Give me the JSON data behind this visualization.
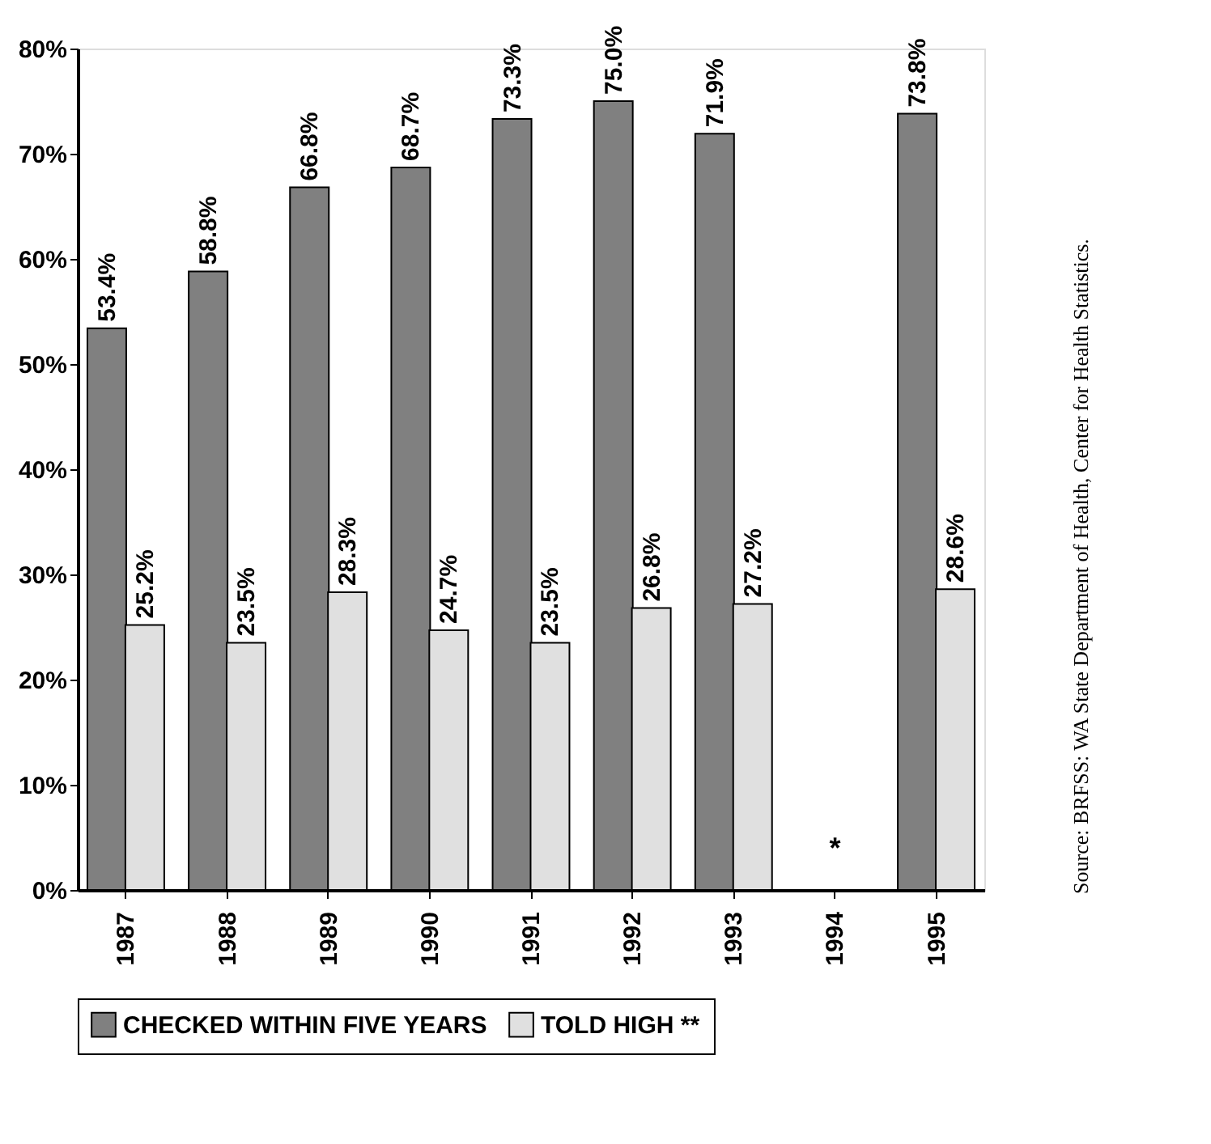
{
  "chart_data": {
    "type": "bar",
    "categories": [
      "1987",
      "1988",
      "1989",
      "1990",
      "1991",
      "1992",
      "1993",
      "1994",
      "1995"
    ],
    "series": [
      {
        "name": "CHECKED WITHIN FIVE YEARS",
        "color": "#808080",
        "values": [
          53.4,
          58.8,
          66.8,
          68.7,
          73.3,
          75.0,
          71.9,
          null,
          73.8
        ],
        "value_labels": [
          "53.4%",
          "58.8%",
          "66.8%",
          "68.7%",
          "73.3%",
          "75.0%",
          "71.9%",
          null,
          "73.8%"
        ]
      },
      {
        "name": "TOLD HIGH **",
        "color": "#e0e0e0",
        "values": [
          25.2,
          23.5,
          28.3,
          24.7,
          23.5,
          26.8,
          27.2,
          null,
          28.6
        ],
        "value_labels": [
          "25.2%",
          "23.5%",
          "28.3%",
          "24.7%",
          "23.5%",
          "26.8%",
          "27.2%",
          null,
          "28.6%"
        ]
      }
    ],
    "ylim": [
      0,
      80
    ],
    "yticks": [
      {
        "value": 0,
        "label": "0%"
      },
      {
        "value": 10,
        "label": "10%"
      },
      {
        "value": 20,
        "label": "20%"
      },
      {
        "value": 30,
        "label": "30%"
      },
      {
        "value": 40,
        "label": "40%"
      },
      {
        "value": 50,
        "label": "50%"
      },
      {
        "value": 60,
        "label": "60%"
      },
      {
        "value": 70,
        "label": "70%"
      },
      {
        "value": 80,
        "label": "80%"
      }
    ],
    "legend": "bottom",
    "annotations": [
      "*",
      "Source:  BRFSS:  WA State Department of Health, Center for Health Statistics."
    ]
  }
}
